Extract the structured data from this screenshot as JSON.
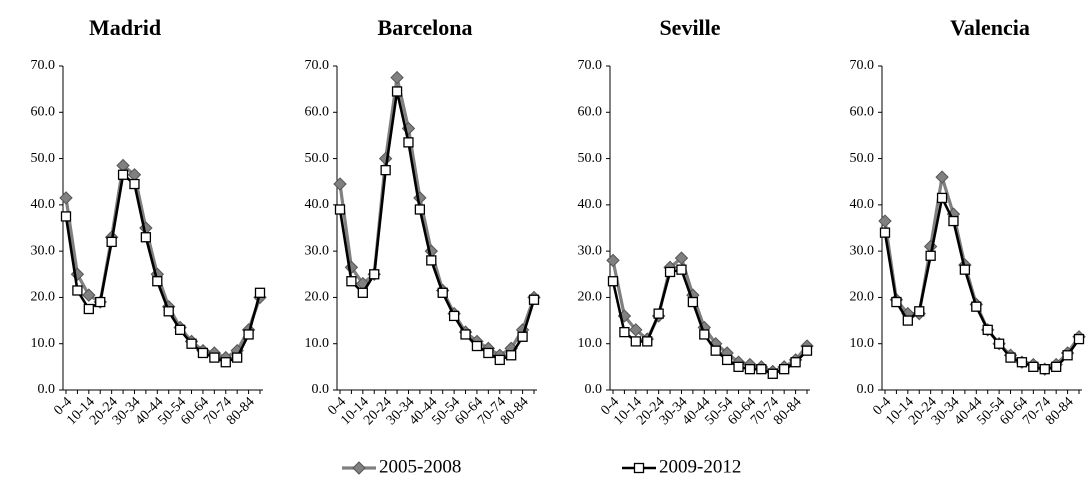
{
  "chart_data": [
    {
      "type": "line",
      "title": "Madrid",
      "categories": [
        "0-4",
        null,
        "10-14",
        null,
        "20-24",
        null,
        "30-34",
        null,
        "40-44",
        null,
        "50-54",
        null,
        "60-64",
        null,
        "70-74",
        null,
        "80-84",
        null
      ],
      "series": [
        {
          "values": [
            41.5,
            25,
            20.5,
            19,
            33,
            48.5,
            46.5,
            35,
            25,
            18,
            13.5,
            10.5,
            8.5,
            8,
            7,
            8.5,
            13,
            20
          ]
        },
        {
          "values": [
            37.5,
            21.5,
            17.5,
            19,
            32,
            46.5,
            44.5,
            33,
            23.5,
            17,
            13,
            10,
            8,
            7,
            6,
            7,
            12,
            21
          ]
        }
      ],
      "ylim": [
        0,
        70
      ],
      "yticks": [
        {
          "value": 0,
          "label": "0.0"
        },
        {
          "value": 10,
          "label": "10.0"
        },
        {
          "value": 20,
          "label": "20.0"
        },
        {
          "value": 30,
          "label": "30.0"
        },
        {
          "value": 40,
          "label": "40.0"
        },
        {
          "value": 50,
          "label": "50.0"
        },
        {
          "value": 60,
          "label": "60.0"
        },
        {
          "value": 70,
          "label": "70.0"
        }
      ]
    },
    {
      "type": "line",
      "title": "Barcelona",
      "categories": [
        "0-4",
        null,
        "10-14",
        null,
        "20-24",
        null,
        "30-34",
        null,
        "40-44",
        null,
        "50-54",
        null,
        "60-64",
        null,
        "70-74",
        null,
        "80-84",
        null
      ],
      "series": [
        {
          "values": [
            44.5,
            26.5,
            23,
            25,
            50,
            67.5,
            56.5,
            41.5,
            30,
            21.5,
            16.5,
            12.5,
            10.5,
            9,
            7.5,
            9,
            13,
            20
          ]
        },
        {
          "values": [
            39,
            23.5,
            21,
            25,
            47.5,
            64.5,
            53.5,
            39,
            28,
            21,
            16,
            12,
            9.5,
            8,
            6.5,
            7.5,
            11.5,
            19.5
          ]
        }
      ],
      "ylim": [
        0,
        70
      ],
      "yticks": [
        {
          "value": 0,
          "label": "0.0"
        },
        {
          "value": 10,
          "label": "10.0"
        },
        {
          "value": 20,
          "label": "20.0"
        },
        {
          "value": 30,
          "label": "30.0"
        },
        {
          "value": 40,
          "label": "40.0"
        },
        {
          "value": 50,
          "label": "50.0"
        },
        {
          "value": 60,
          "label": "60.0"
        },
        {
          "value": 70,
          "label": "70.0"
        }
      ]
    },
    {
      "type": "line",
      "title": "Seville",
      "categories": [
        "0-4",
        null,
        "10-14",
        null,
        "20-24",
        null,
        "30-34",
        null,
        "40-44",
        null,
        "50-54",
        null,
        "60-64",
        null,
        "70-74",
        null,
        "80-84",
        null
      ],
      "series": [
        {
          "values": [
            28,
            16,
            13,
            11,
            16,
            26.5,
            28.5,
            20.5,
            13.5,
            10,
            8,
            6,
            5.5,
            5,
            4,
            5,
            6.5,
            9.5
          ]
        },
        {
          "values": [
            23.5,
            12.5,
            10.5,
            10.5,
            16.5,
            25.5,
            26,
            19,
            12,
            8.5,
            6.5,
            5,
            4.5,
            4.5,
            3.5,
            4.5,
            6,
            8.5
          ]
        }
      ],
      "ylim": [
        0,
        70
      ],
      "yticks": [
        {
          "value": 0,
          "label": "0.0"
        },
        {
          "value": 10,
          "label": "10.0"
        },
        {
          "value": 20,
          "label": "20.0"
        },
        {
          "value": 30,
          "label": "30.0"
        },
        {
          "value": 40,
          "label": "40.0"
        },
        {
          "value": 50,
          "label": "50.0"
        },
        {
          "value": 60,
          "label": "60.0"
        },
        {
          "value": 70,
          "label": "70.0"
        }
      ]
    },
    {
      "type": "line",
      "title": "Valencia",
      "categories": [
        "0-4",
        null,
        "10-14",
        null,
        "20-24",
        null,
        "30-34",
        null,
        "40-44",
        null,
        "50-54",
        null,
        "60-64",
        null,
        "70-74",
        null,
        "80-84",
        null
      ],
      "series": [
        {
          "values": [
            36.5,
            19.5,
            16.5,
            16.5,
            31,
            46,
            38,
            27,
            18.5,
            13,
            10,
            7.5,
            6,
            5.5,
            4.5,
            5.5,
            8,
            11.5
          ]
        },
        {
          "values": [
            34,
            19,
            15,
            17,
            29,
            41.5,
            36.5,
            26,
            18,
            13,
            10,
            7,
            6,
            5,
            4.5,
            5,
            7.5,
            11
          ]
        }
      ],
      "ylim": [
        0,
        70
      ],
      "yticks": [
        {
          "value": 0,
          "label": "0.0"
        },
        {
          "value": 10,
          "label": "10.0"
        },
        {
          "value": 20,
          "label": "20.0"
        },
        {
          "value": 30,
          "label": "30.0"
        },
        {
          "value": 40,
          "label": "40.0"
        },
        {
          "value": 50,
          "label": "50.0"
        },
        {
          "value": 60,
          "label": "60.0"
        },
        {
          "value": 70,
          "label": "70.0"
        }
      ]
    }
  ],
  "legend": {
    "series": [
      {
        "name": "2005-2008",
        "color": "#808080",
        "marker": "diamond"
      },
      {
        "name": "2009-2012",
        "color": "#000000",
        "marker": "square"
      }
    ]
  }
}
